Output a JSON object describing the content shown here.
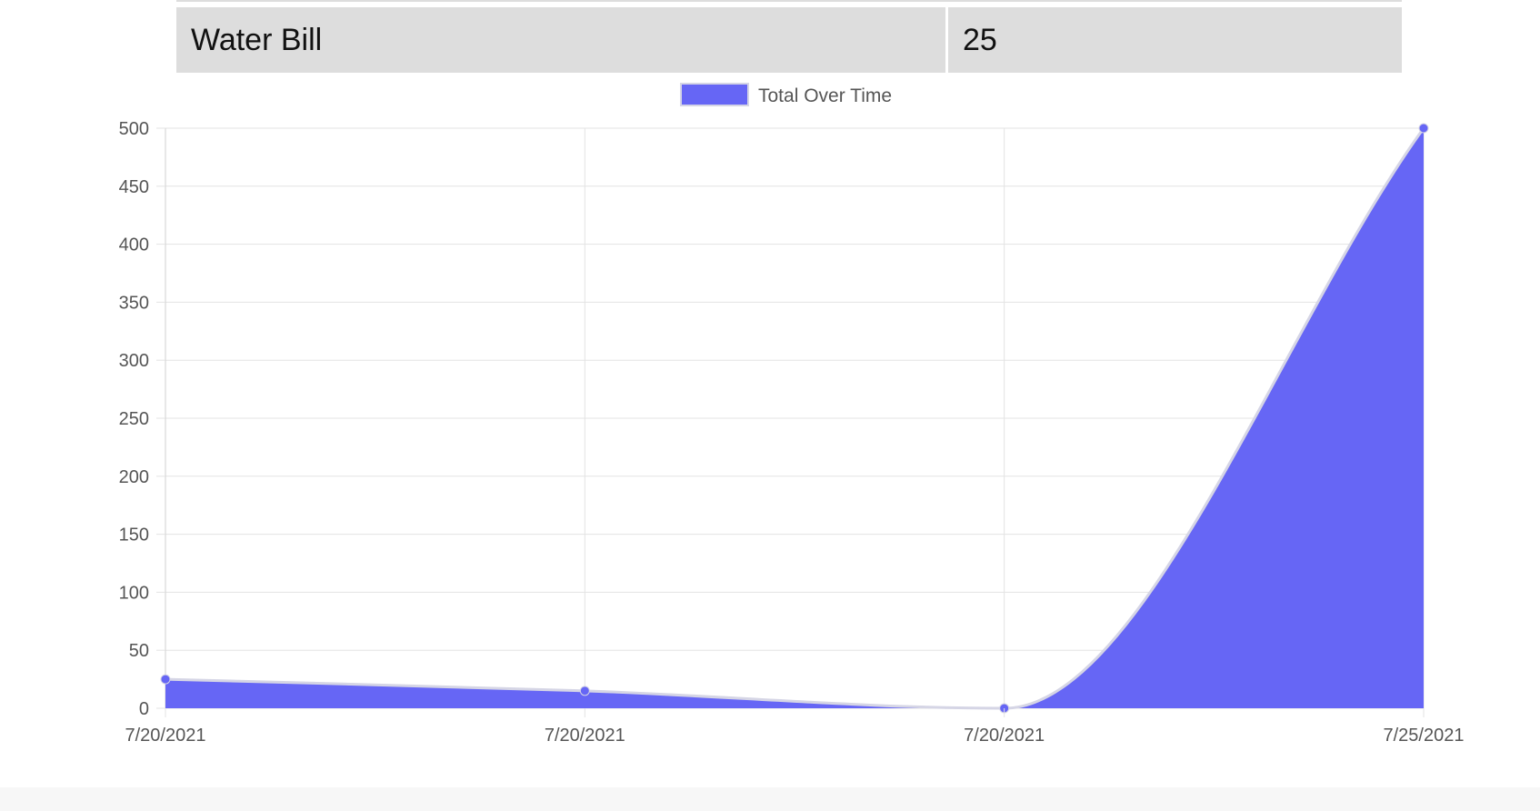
{
  "table": {
    "rows": [
      {
        "name": "Water Bill",
        "value": "25"
      }
    ]
  },
  "colors": {
    "fill": "#6666f5",
    "line": "#d5d5e5",
    "grid": "#e3e3e3",
    "tick_text": "#555555"
  },
  "chart_data": {
    "type": "area",
    "title": "",
    "xlabel": "",
    "ylabel": "",
    "legend": {
      "position": "top-center"
    },
    "categories": [
      "7/20/2021",
      "7/20/2021",
      "7/20/2021",
      "7/25/2021"
    ],
    "series": [
      {
        "name": "Total Over Time",
        "values": [
          25,
          15,
          0,
          500
        ]
      }
    ],
    "ylim": [
      0,
      500
    ],
    "yticks": [
      0,
      50,
      100,
      150,
      200,
      250,
      300,
      350,
      400,
      450,
      500
    ],
    "grid": true
  }
}
